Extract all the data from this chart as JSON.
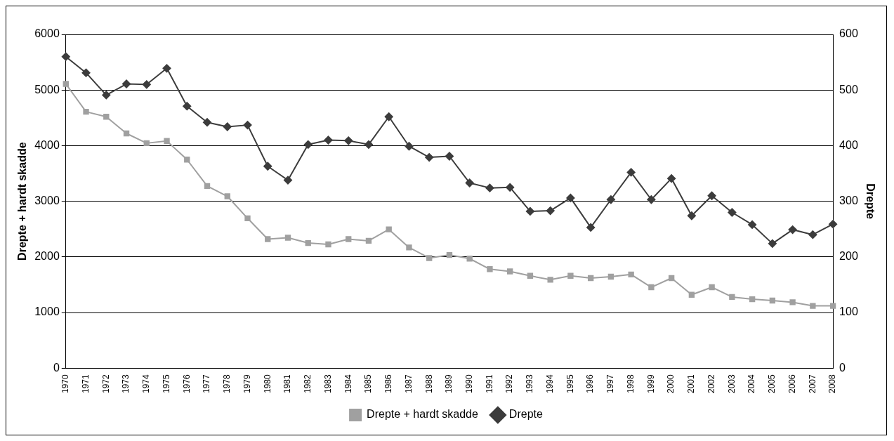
{
  "chart_data": {
    "type": "line",
    "ylabel": "Drepte + hardt skadde",
    "y2label": "Drepte",
    "categories": [
      "1970",
      "1971",
      "1972",
      "1973",
      "1974",
      "1975",
      "1976",
      "1977",
      "1978",
      "1979",
      "1980",
      "1981",
      "1982",
      "1983",
      "1984",
      "1985",
      "1986",
      "1987",
      "1988",
      "1989",
      "1990",
      "1991",
      "1992",
      "1993",
      "1994",
      "1995",
      "1996",
      "1997",
      "1998",
      "1999",
      "2000",
      "2001",
      "2002",
      "2003",
      "2004",
      "2005",
      "2006",
      "2007",
      "2008"
    ],
    "series": [
      {
        "name": "Drepte + hardt skadde",
        "color": "#a0a0a0",
        "marker": "square",
        "values": [
          5110,
          4610,
          4520,
          4220,
          4045,
          4085,
          3750,
          3275,
          3090,
          2695,
          2320,
          2345,
          2250,
          2225,
          2320,
          2290,
          2495,
          2170,
          1980,
          2035,
          1970,
          1780,
          1740,
          1660,
          1590,
          1660,
          1620,
          1645,
          1685,
          1455,
          1620,
          1320,
          1455,
          1280,
          1240,
          1215,
          1185,
          1120,
          1120
        ]
      },
      {
        "name": "Drepte",
        "color": "#3c3c3c",
        "marker": "diamond",
        "axis": "y2",
        "values": [
          560,
          531,
          491,
          511,
          510,
          539,
          471,
          442,
          434,
          437,
          363,
          338,
          402,
          410,
          409,
          402,
          452,
          399,
          379,
          381,
          333,
          324,
          325,
          282,
          283,
          306,
          253,
          303,
          352,
          303,
          341,
          274,
          310,
          280,
          258,
          224,
          249,
          240,
          259
        ]
      }
    ],
    "ylim": [
      0,
      6000
    ],
    "yticks": [
      0,
      1000,
      2000,
      3000,
      4000,
      5000,
      6000
    ],
    "y2lim": [
      0,
      600
    ],
    "y2ticks": [
      0,
      100,
      200,
      300,
      400,
      500,
      600
    ],
    "grid": "y",
    "legend": "bottom"
  }
}
